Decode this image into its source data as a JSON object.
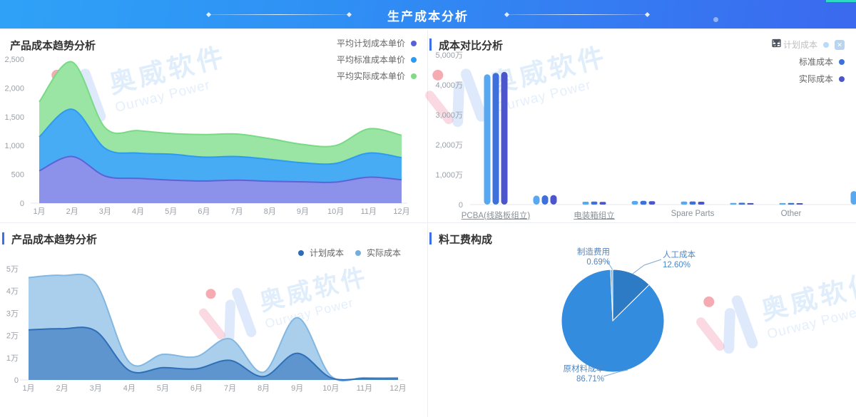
{
  "header": {
    "title": "生产成本分析"
  },
  "watermark": {
    "cn": "奥威软件",
    "en": "Ourway Power"
  },
  "panels": {
    "trend_top": {
      "title": "产品成本趋势分析"
    },
    "compare": {
      "title": "成本对比分析",
      "toolbar_icons": [
        "list-icon",
        "expand-icon",
        "filter-icon"
      ]
    },
    "trend_bottom": {
      "title": "产品成本趋势分析"
    },
    "composition": {
      "title": "料工费构成"
    }
  },
  "colors": {
    "header_gradient_left": "#2FA2F7",
    "header_gradient_right": "#3B69EF",
    "accent_bar": "#3D6FE8",
    "teal_corner": "#2ED9C3"
  },
  "chart_data": [
    {
      "type": "area",
      "title": "产品成本趋势分析",
      "x": [
        "1月",
        "2月",
        "3月",
        "4月",
        "5月",
        "6月",
        "7月",
        "8月",
        "9月",
        "10月",
        "11月",
        "12月"
      ],
      "ylim": [
        0,
        2500
      ],
      "yticks": [
        "0",
        "500",
        "1,000",
        "1,500",
        "2,000",
        "2,500"
      ],
      "legend_position": "top-right",
      "series": [
        {
          "name": "平均计划成本单价",
          "dot": "#5560D9",
          "fill": "#8C92E9",
          "stroke": "#5B63D9",
          "values": [
            560,
            810,
            470,
            430,
            400,
            385,
            400,
            380,
            370,
            365,
            450,
            405
          ]
        },
        {
          "name": "平均标准成本单价",
          "dot": "#2F9BF0",
          "fill": "#47ACF3",
          "stroke": "#2E9BF0",
          "values": [
            1150,
            1630,
            950,
            870,
            850,
            800,
            810,
            760,
            700,
            690,
            870,
            790
          ]
        },
        {
          "name": "平均实际成本单价",
          "dot": "#7EDC84",
          "fill": "#9AE5A4",
          "stroke": "#79DA85",
          "values": [
            1760,
            2450,
            1310,
            1260,
            1210,
            1190,
            1200,
            1120,
            1020,
            1000,
            1290,
            1180
          ]
        }
      ]
    },
    {
      "type": "bar",
      "title": "成本对比分析",
      "unit": "万",
      "ylim": [
        0,
        5000
      ],
      "yticks": [
        "0",
        "1,000万",
        "2,000万",
        "3,000万",
        "4,000万",
        "5,000万"
      ],
      "categories": [
        {
          "label": "PCBA(线路板组立)",
          "underline": true
        },
        {
          "label": "",
          "underline": false
        },
        {
          "label": "电装箱组立",
          "underline": true
        },
        {
          "label": "",
          "underline": false
        },
        {
          "label": "Spare Parts",
          "underline": false
        },
        {
          "label": "",
          "underline": false
        },
        {
          "label": "Other",
          "underline": false
        },
        {
          "label": "",
          "underline": false
        }
      ],
      "series": [
        {
          "name": "计划成本",
          "color": "#57A8F1",
          "muted_in_legend": true,
          "values": [
            4350,
            300,
            95,
            120,
            100,
            55,
            50,
            450
          ]
        },
        {
          "name": "标准成本",
          "color": "#3E70DC",
          "values": [
            4400,
            310,
            100,
            125,
            105,
            60,
            55,
            440
          ]
        },
        {
          "name": "实际成本",
          "color": "#4C55CC",
          "values": [
            4430,
            320,
            90,
            115,
            95,
            50,
            45,
            430
          ]
        }
      ]
    },
    {
      "type": "area",
      "title": "产品成本趋势分析",
      "x": [
        "1月",
        "2月",
        "3月",
        "4月",
        "5月",
        "6月",
        "7月",
        "8月",
        "9月",
        "10月",
        "11月",
        "12月"
      ],
      "ylim": [
        0,
        5
      ],
      "yticks": [
        "0",
        "1万",
        "2万",
        "3万",
        "4万",
        "5万"
      ],
      "legend_position": "top-right",
      "series": [
        {
          "name": "计划成本",
          "dot": "#2B6CB8",
          "fill": "#5E95CE",
          "stroke": "#2F6FB8",
          "values": [
            2.25,
            2.3,
            2.2,
            0.42,
            0.55,
            0.5,
            0.88,
            0.15,
            1.2,
            0.1,
            0.06,
            0.05
          ]
        },
        {
          "name": "实际成本",
          "dot": "#74AEDC",
          "fill": "#A9CFED",
          "stroke": "#82B7E2",
          "values": [
            4.6,
            4.7,
            4.35,
            0.8,
            1.15,
            1.05,
            1.85,
            0.35,
            2.8,
            0.18,
            0.1,
            0.1
          ]
        }
      ]
    },
    {
      "type": "pie",
      "title": "料工费构成",
      "slices": [
        {
          "name": "人工成本",
          "pct": "12.60%",
          "value": 12.6,
          "color": "#2E7BC5"
        },
        {
          "name": "原材料成本",
          "pct": "86.71%",
          "value": 86.71,
          "color": "#338CDD"
        },
        {
          "name": "制造费用",
          "pct": "0.69%",
          "value": 0.69,
          "color": "#6FB0E6"
        }
      ]
    }
  ]
}
